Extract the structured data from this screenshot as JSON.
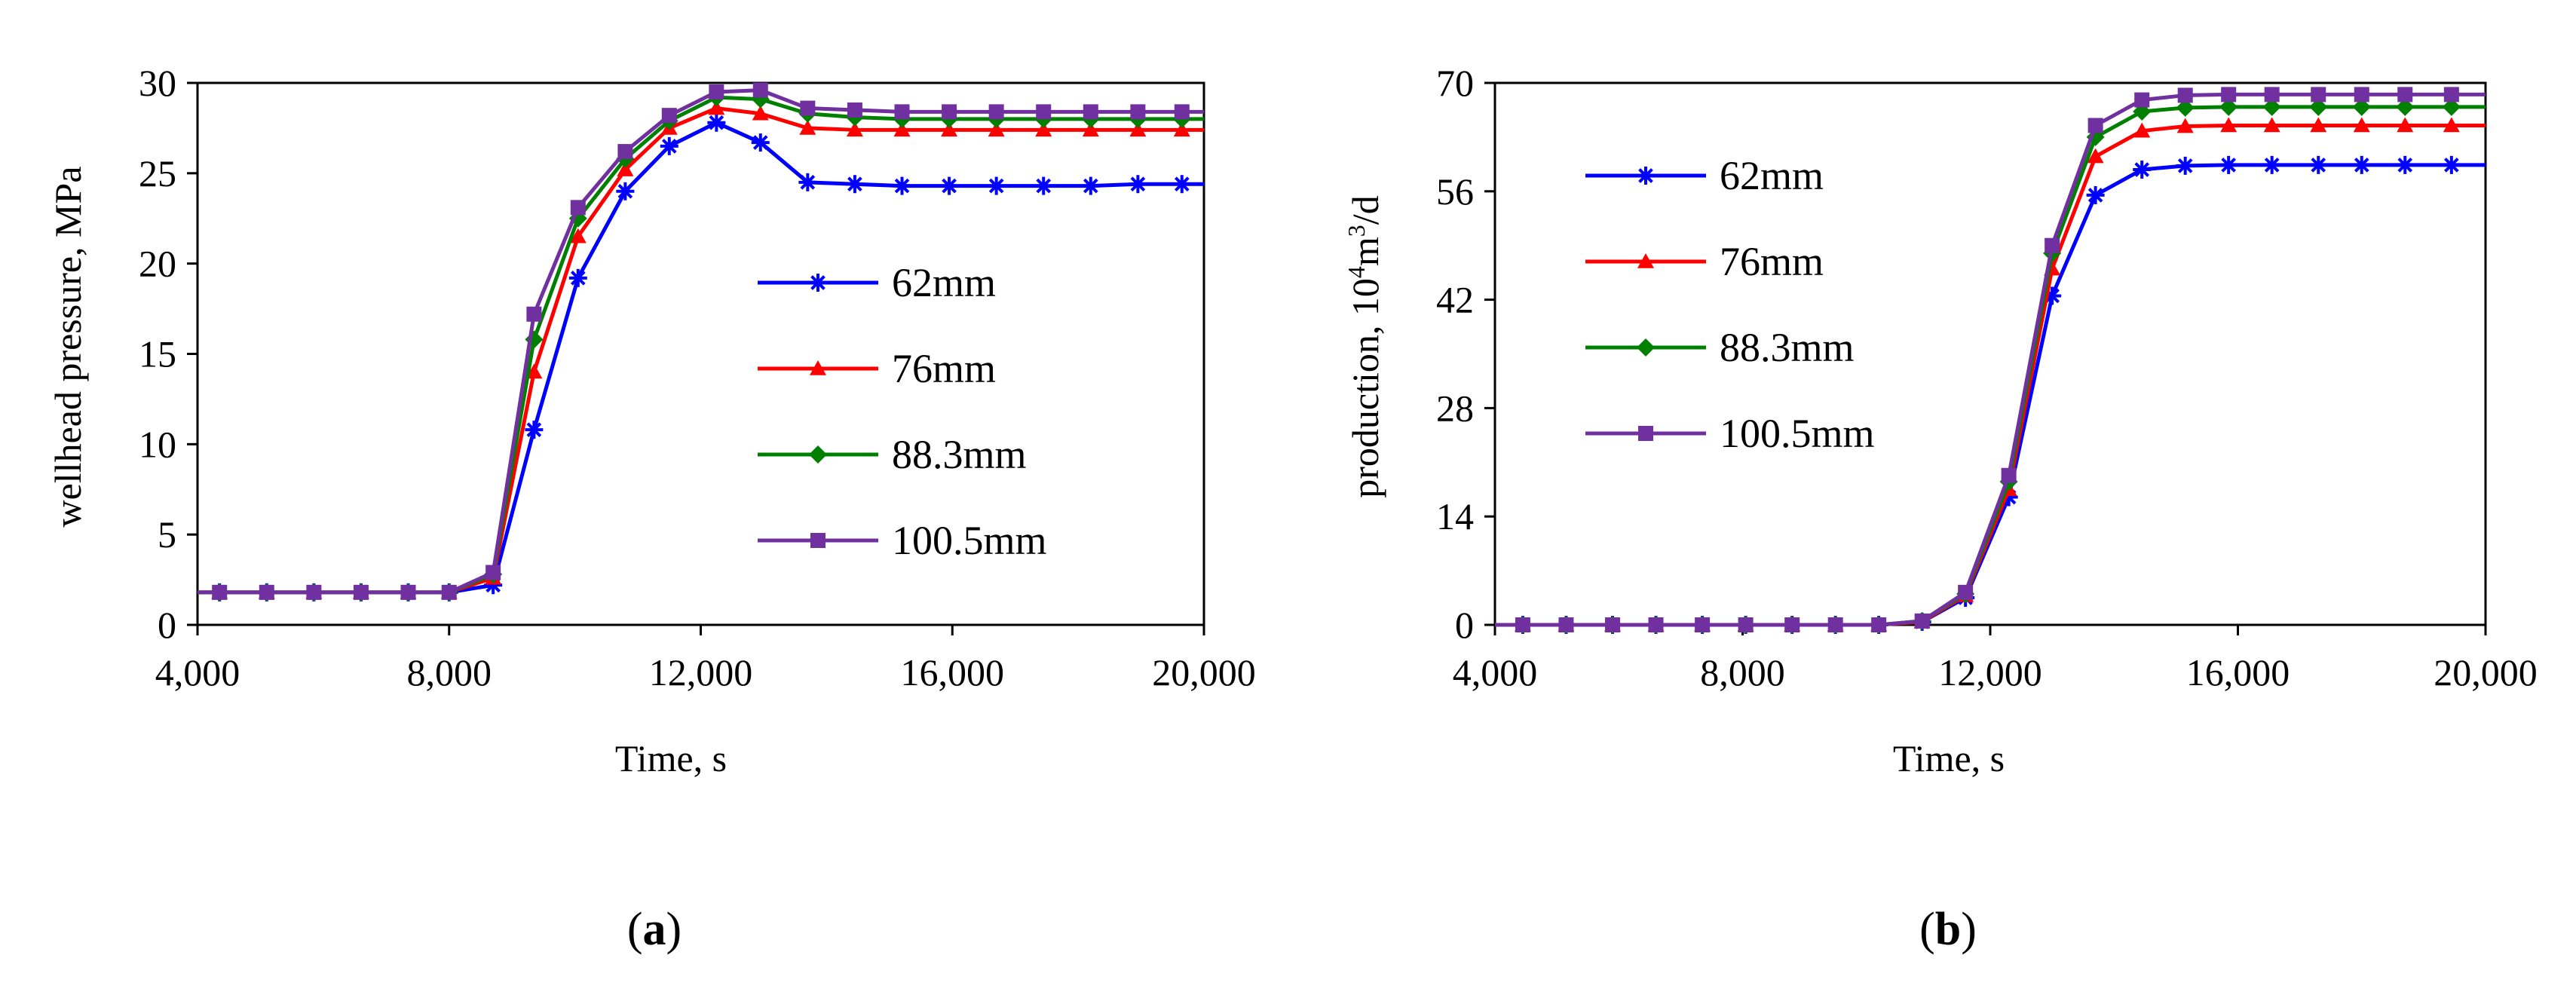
{
  "chart_data": [
    {
      "id": "a",
      "type": "line",
      "panel_label": "(a)",
      "panel_letter": "a",
      "title": "",
      "xlabel": "Time, s",
      "ylabel": "wellhead pressure, MPa",
      "xlim": [
        4000,
        20000
      ],
      "ylim": [
        0,
        30
      ],
      "xticks": [
        4000,
        8000,
        12000,
        16000,
        20000
      ],
      "xtick_labels": [
        "4,000",
        "8,000",
        "12,000",
        "16,000",
        "20,000"
      ],
      "yticks": [
        0,
        5,
        10,
        15,
        20,
        25,
        30
      ],
      "ytick_labels": [
        "0",
        "5",
        "10",
        "15",
        "20",
        "25",
        "30"
      ],
      "grid": false,
      "legend_position": "center-right",
      "x": [
        4000,
        4350,
        5100,
        5850,
        6600,
        7350,
        8000,
        8700,
        9350,
        10050,
        10800,
        11500,
        12250,
        12950,
        13700,
        14450,
        15200,
        15950,
        16700,
        17450,
        18200,
        18950,
        19650,
        20000
      ],
      "series": [
        {
          "name": "62mm",
          "color": "#0000ff",
          "marker": "asterisk",
          "values": [
            1.8,
            1.8,
            1.8,
            1.8,
            1.8,
            1.8,
            1.8,
            2.2,
            10.8,
            19.2,
            24.0,
            26.5,
            27.8,
            26.7,
            24.5,
            24.4,
            24.3,
            24.3,
            24.3,
            24.3,
            24.3,
            24.4,
            24.4,
            24.4
          ]
        },
        {
          "name": "76mm",
          "color": "#ff0000",
          "marker": "triangle",
          "values": [
            1.8,
            1.8,
            1.8,
            1.8,
            1.8,
            1.8,
            1.8,
            2.6,
            14.0,
            21.5,
            25.2,
            27.5,
            28.6,
            28.3,
            27.5,
            27.4,
            27.4,
            27.4,
            27.4,
            27.4,
            27.4,
            27.4,
            27.4,
            27.4
          ]
        },
        {
          "name": "88.3mm",
          "color": "#008000",
          "marker": "diamond",
          "values": [
            1.8,
            1.8,
            1.8,
            1.8,
            1.8,
            1.8,
            1.8,
            2.8,
            15.8,
            22.5,
            25.8,
            27.9,
            29.2,
            29.1,
            28.3,
            28.1,
            28.0,
            28.0,
            28.0,
            28.0,
            28.0,
            28.0,
            28.0,
            28.0
          ]
        },
        {
          "name": "100.5mm",
          "color": "#7030a0",
          "marker": "square",
          "values": [
            1.8,
            1.8,
            1.8,
            1.8,
            1.8,
            1.8,
            1.8,
            2.9,
            17.2,
            23.1,
            26.2,
            28.2,
            29.5,
            29.6,
            28.6,
            28.5,
            28.4,
            28.4,
            28.4,
            28.4,
            28.4,
            28.4,
            28.4,
            28.4
          ]
        }
      ]
    },
    {
      "id": "b",
      "type": "line",
      "panel_label": "(b)",
      "panel_letter": "b",
      "title": "",
      "xlabel": "Time, s",
      "ylabel": "production, 10^4m^3/d",
      "ylabel_parts": [
        "production, 10",
        "4",
        "m",
        "3",
        "/d"
      ],
      "xlim": [
        4000,
        20000
      ],
      "ylim": [
        0,
        70
      ],
      "xticks": [
        4000,
        8000,
        12000,
        16000,
        20000
      ],
      "xtick_labels": [
        "4,000",
        "8,000",
        "12,000",
        "16,000",
        "20,000"
      ],
      "yticks": [
        0,
        14,
        28,
        42,
        56,
        70
      ],
      "ytick_labels": [
        "0",
        "14",
        "28",
        "42",
        "56",
        "70"
      ],
      "grid": false,
      "legend_position": "top-left",
      "x": [
        4000,
        4450,
        5150,
        5900,
        6600,
        7350,
        8050,
        8800,
        9500,
        10200,
        10900,
        11600,
        12300,
        13000,
        13700,
        14450,
        15150,
        15850,
        16550,
        17300,
        18000,
        18700,
        19450,
        20000
      ],
      "series": [
        {
          "name": "62mm",
          "color": "#0000ff",
          "marker": "asterisk",
          "values": [
            0,
            0,
            0,
            0,
            0,
            0,
            0,
            0,
            0,
            0,
            0.4,
            3.5,
            16.5,
            42.5,
            55.5,
            58.8,
            59.3,
            59.4,
            59.4,
            59.4,
            59.4,
            59.4,
            59.4,
            59.4
          ]
        },
        {
          "name": "76mm",
          "color": "#ff0000",
          "marker": "triangle",
          "values": [
            0,
            0,
            0,
            0,
            0,
            0,
            0,
            0,
            0,
            0,
            0.4,
            3.8,
            17.5,
            46.0,
            60.5,
            63.8,
            64.4,
            64.5,
            64.5,
            64.5,
            64.5,
            64.5,
            64.5,
            64.5
          ]
        },
        {
          "name": "88.3mm",
          "color": "#008000",
          "marker": "diamond",
          "values": [
            0,
            0,
            0,
            0,
            0,
            0,
            0,
            0,
            0,
            0,
            0.5,
            4.0,
            18.5,
            48.0,
            63.0,
            66.3,
            66.8,
            66.9,
            66.9,
            66.9,
            66.9,
            66.9,
            66.9,
            66.9
          ]
        },
        {
          "name": "100.5mm",
          "color": "#7030a0",
          "marker": "square",
          "values": [
            0,
            0,
            0,
            0,
            0,
            0,
            0,
            0,
            0,
            0,
            0.5,
            4.2,
            19.3,
            49.0,
            64.5,
            67.8,
            68.4,
            68.5,
            68.5,
            68.5,
            68.5,
            68.5,
            68.5,
            68.5
          ]
        }
      ]
    }
  ]
}
